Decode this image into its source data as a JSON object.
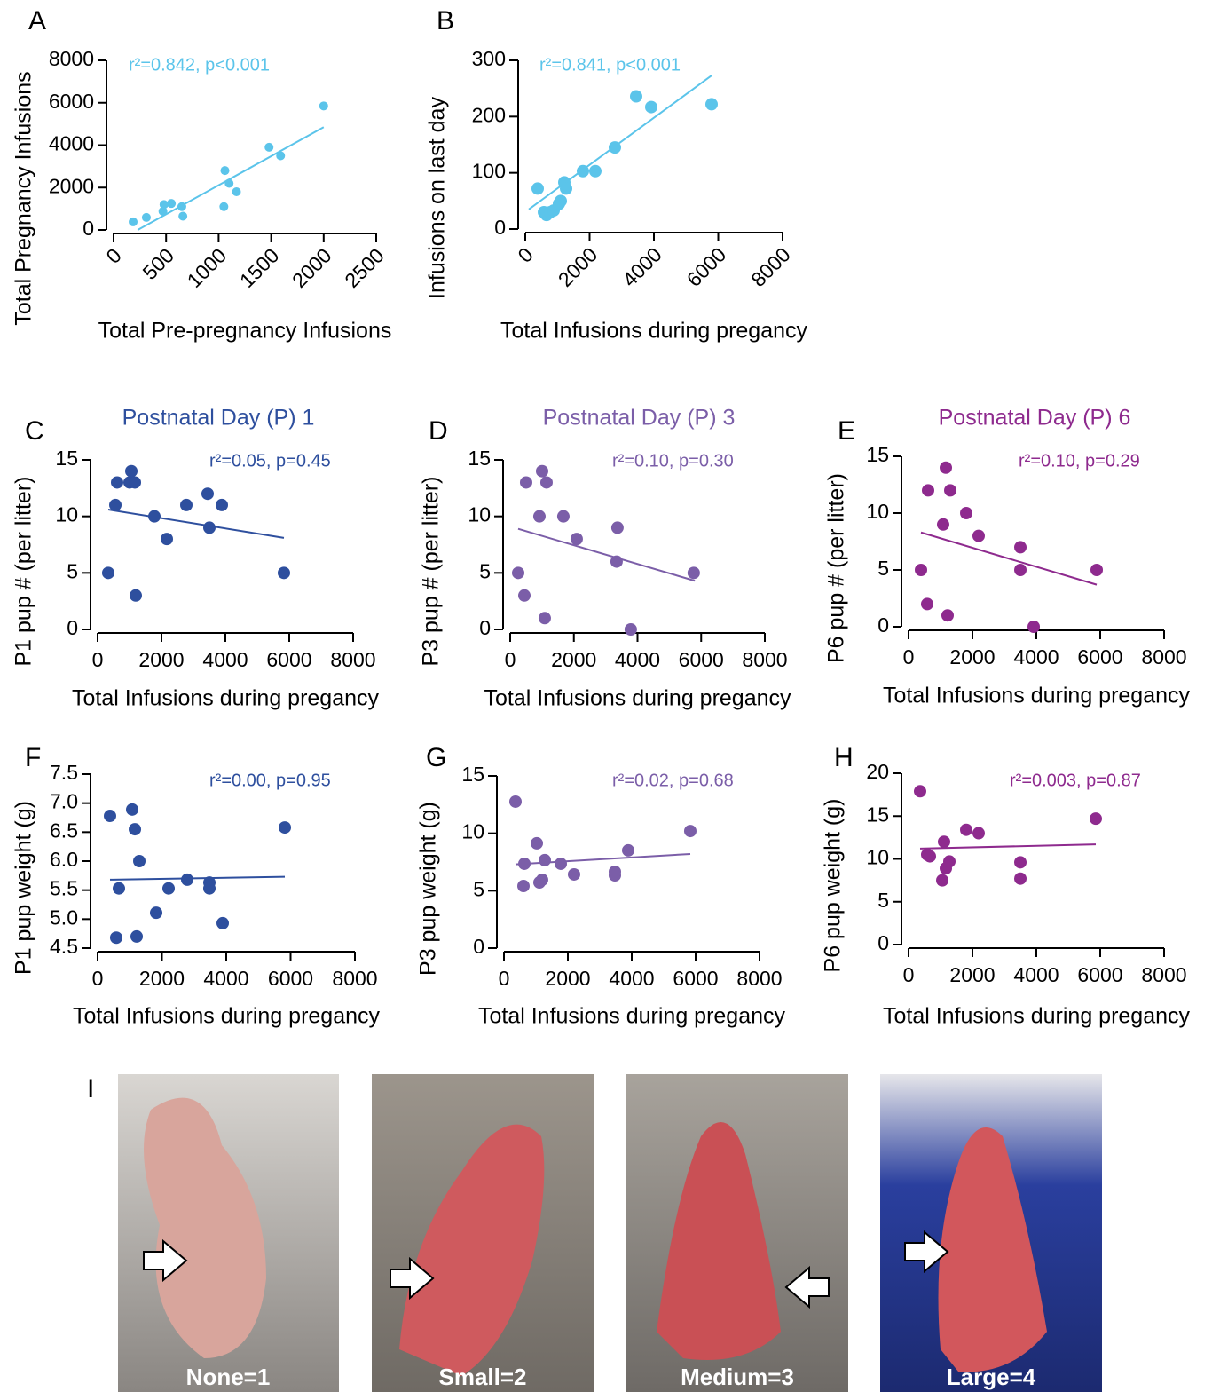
{
  "chart_data": [
    {
      "type": "scatter",
      "panel": "A",
      "xlabel": "Total Pre-pregnancy Infusions",
      "ylabel": "Total Pregnancy Infusions",
      "annotation": "r²=0.842, p<0.001",
      "color": "#5bc4ea",
      "x": [
        186,
        312,
        470,
        480,
        550,
        650,
        660,
        1050,
        1060,
        1100,
        1170,
        1480,
        1590,
        2000
      ],
      "y": [
        380,
        590,
        880,
        1200,
        1250,
        1100,
        650,
        1100,
        2800,
        2200,
        1800,
        3900,
        3500,
        5850
      ],
      "trendline": {
        "x": [
          230,
          2000
        ],
        "y": [
          0,
          4850
        ]
      },
      "xlim": [
        0,
        2500
      ],
      "xticks": [
        0,
        500,
        1000,
        1500,
        2000,
        2500
      ],
      "ylim": [
        0,
        8000
      ],
      "yticks": [
        0,
        2000,
        4000,
        6000,
        8000
      ]
    },
    {
      "type": "scatter",
      "panel": "B",
      "xlabel": "Total Infusions during pregancy",
      "ylabel": "Infusions on last day",
      "annotation": "r²=0.841, p<0.001",
      "color": "#5bc4ea",
      "x": [
        386,
        580,
        662,
        772,
        883,
        1048,
        1103,
        1214,
        1269,
        1793,
        2179,
        2786,
        3448,
        3917,
        5793
      ],
      "y": [
        72,
        30,
        25,
        30,
        33,
        45,
        50,
        83,
        72,
        103,
        103,
        145,
        236,
        217,
        222
      ],
      "trendline": {
        "x": [
          110,
          5793
        ],
        "y": [
          35,
          273
        ]
      },
      "xlim": [
        0,
        8000
      ],
      "xticks": [
        0,
        2000,
        4000,
        6000,
        8000
      ],
      "ylim": [
        0,
        300
      ],
      "yticks": [
        0,
        100,
        200,
        300
      ]
    },
    {
      "type": "scatter",
      "panel": "C",
      "title": "Postnatal Day (P) 1",
      "xlabel": "Total Infusions during pregancy",
      "ylabel": "P1 pup # (per litter)",
      "annotation": "r²=0.05, p=0.45",
      "color": "#2e4f9e",
      "x": [
        333,
        556,
        611,
        1000,
        1056,
        1167,
        1194,
        1778,
        2167,
        2778,
        3444,
        3500,
        3889,
        5833
      ],
      "y": [
        5,
        11,
        13,
        13,
        14,
        13,
        3,
        10,
        8,
        11,
        12,
        9,
        11,
        5
      ],
      "trendline": {
        "x": [
          333,
          5833
        ],
        "y": [
          10.6,
          8.1
        ]
      },
      "xlim": [
        0,
        8000
      ],
      "xticks": [
        0,
        2000,
        4000,
        6000,
        8000
      ],
      "ylim": [
        0,
        15
      ],
      "yticks": [
        0,
        5,
        10,
        15
      ]
    },
    {
      "type": "scatter",
      "panel": "D",
      "title": "Postnatal Day (P) 3",
      "xlabel": "Total Infusions during pregancy",
      "ylabel": "P3 pup # (per litter)",
      "annotation": "r²=0.10, p=0.30",
      "color": "#7b5ea8",
      "x": [
        251,
        446,
        501,
        919,
        1003,
        1142,
        1086,
        1671,
        2089,
        3370,
        3343,
        3788,
        5766
      ],
      "y": [
        5,
        3,
        13,
        10,
        14,
        13,
        1,
        10,
        8,
        9,
        6,
        0,
        5
      ],
      "trendline": {
        "x": [
          250,
          5800
        ],
        "y": [
          8.9,
          4.3
        ]
      },
      "xlim": [
        0,
        8000
      ],
      "xticks": [
        0,
        2000,
        4000,
        6000,
        8000
      ],
      "ylim": [
        0,
        15
      ],
      "yticks": [
        0,
        5,
        10,
        15
      ]
    },
    {
      "type": "scatter",
      "panel": "E",
      "title": "Postnatal Day (P) 6",
      "xlabel": "Total Infusions during pregancy",
      "ylabel": "P6 pup # (per litter)",
      "annotation": "r²=0.10, p=0.29",
      "color": "#8e2a8e",
      "x": [
        389,
        611,
        583,
        1083,
        1167,
        1306,
        1222,
        1806,
        2194,
        3500,
        3500,
        3917,
        5889
      ],
      "y": [
        5,
        12,
        2,
        9,
        14,
        12,
        1,
        10,
        8,
        7,
        5,
        0,
        5
      ],
      "trendline": {
        "x": [
          389,
          5889
        ],
        "y": [
          8.3,
          3.7
        ]
      },
      "xlim": [
        0,
        8000
      ],
      "xticks": [
        0,
        2000,
        4000,
        6000,
        8000
      ],
      "ylim": [
        0,
        15
      ],
      "yticks": [
        0,
        5,
        10,
        15
      ]
    },
    {
      "type": "scatter",
      "panel": "F",
      "xlabel": "Total Infusions during pregancy",
      "ylabel": "P1 pup weight (g)",
      "annotation": "r²=0.00, p=0.95",
      "color": "#2e4f9e",
      "x": [
        386,
        579,
        662,
        1076,
        1159,
        1214,
        1297,
        1821,
        2207,
        2786,
        3476,
        3476,
        3890,
        5821
      ],
      "y": [
        6.78,
        4.68,
        5.53,
        6.89,
        6.55,
        4.7,
        6.0,
        5.11,
        5.53,
        5.68,
        5.63,
        5.53,
        4.93,
        6.58
      ],
      "trendline": {
        "x": [
          386,
          5821
        ],
        "y": [
          5.68,
          5.73
        ]
      },
      "xlim": [
        0,
        8000
      ],
      "xticks": [
        0,
        2000,
        4000,
        6000,
        8000
      ],
      "ylim": [
        4.5,
        7.5
      ],
      "yticks": [
        4.5,
        {
          "value": 5,
          "label": "5.0"
        },
        5.5,
        {
          "value": 6,
          "label": "6.0"
        },
        6.5,
        {
          "value": 7,
          "label": "7.0"
        },
        7.5
      ]
    },
    {
      "type": "scatter",
      "panel": "G",
      "xlabel": "Total Infusions during pregancy",
      "ylabel": "P3 pup weight (g)",
      "annotation": "r²=0.02, p=0.68",
      "color": "#7b5ea8",
      "x": [
        361,
        611,
        639,
        1028,
        1111,
        1194,
        1278,
        1778,
        2194,
        3472,
        3472,
        3889,
        5833
      ],
      "y": [
        12.76,
        5.41,
        7.35,
        9.13,
        5.72,
        5.95,
        7.66,
        7.35,
        6.42,
        6.34,
        6.65,
        8.51,
        10.2
      ],
      "trendline": {
        "x": [
          361,
          5833
        ],
        "y": [
          7.3,
          8.2
        ]
      },
      "xlim": [
        0,
        8000
      ],
      "xticks": [
        0,
        2000,
        4000,
        6000,
        8000
      ],
      "ylim": [
        0,
        15
      ],
      "yticks": [
        0,
        5,
        10,
        15
      ]
    },
    {
      "type": "scatter",
      "panel": "H",
      "xlabel": "Total Infusions during pregancy",
      "ylabel": "P6 pup weight (g)",
      "annotation": "r²=0.003, p=0.87",
      "color": "#8e2a8e",
      "x": [
        361,
        583,
        667,
        1056,
        1111,
        1167,
        1278,
        1806,
        2194,
        3500,
        3500,
        5861
      ],
      "y": [
        17.9,
        10.5,
        10.3,
        7.5,
        12.0,
        8.9,
        9.7,
        13.4,
        13.0,
        9.6,
        7.7,
        14.7
      ],
      "trendline": {
        "x": [
          361,
          5861
        ],
        "y": [
          11.2,
          11.7
        ]
      },
      "xlim": [
        0,
        8000
      ],
      "xticks": [
        0,
        2000,
        4000,
        6000,
        8000
      ],
      "ylim": [
        0,
        20
      ],
      "yticks": [
        0,
        5,
        10,
        15,
        20
      ]
    }
  ],
  "photos": {
    "panel": "I",
    "labels": [
      "None=1",
      "Small=2",
      "Medium=3",
      "Large=4"
    ]
  }
}
